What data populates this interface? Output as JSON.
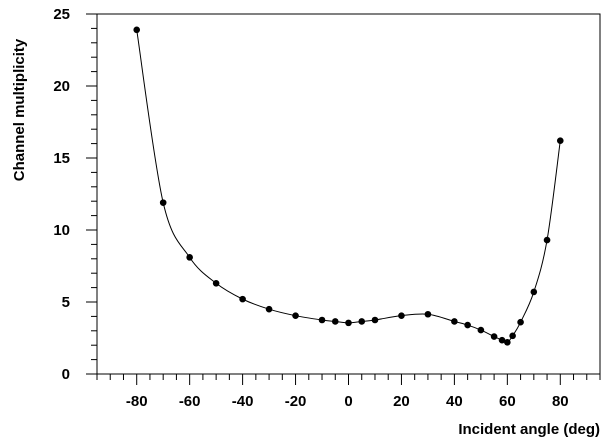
{
  "chart_data": {
    "type": "line",
    "title": "",
    "xlabel": "Incident angle (deg)",
    "ylabel": "Channel multiplicity",
    "xlim": [
      -95,
      95
    ],
    "ylim": [
      0,
      25
    ],
    "x_ticks": [
      -80,
      -60,
      -40,
      -20,
      0,
      20,
      40,
      60,
      80
    ],
    "y_ticks": [
      0,
      5,
      10,
      15,
      20,
      25
    ],
    "grid": false,
    "legend": "none",
    "series": [
      {
        "x": [
          -80,
          -70,
          -60,
          -50,
          -40,
          -30,
          -20,
          -10,
          -5,
          0,
          5,
          10,
          20,
          30,
          40,
          45,
          50,
          55,
          58,
          60,
          62,
          65,
          70,
          75,
          80
        ],
        "y": [
          23.9,
          11.9,
          8.1,
          6.3,
          5.2,
          4.5,
          4.05,
          3.75,
          3.65,
          3.55,
          3.65,
          3.75,
          4.05,
          4.15,
          3.65,
          3.4,
          3.05,
          2.6,
          2.35,
          2.2,
          2.65,
          3.6,
          5.7,
          9.3,
          16.2
        ]
      }
    ],
    "colors": {
      "line": "#000000",
      "marker": "#000000"
    }
  }
}
